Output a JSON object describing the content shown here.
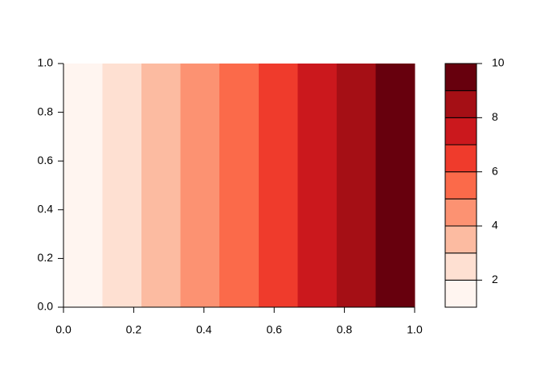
{
  "chart_data": {
    "type": "filled_contour",
    "x_breaks": [
      0,
      0.111,
      0.222,
      0.333,
      0.444,
      0.556,
      0.667,
      0.778,
      0.889,
      1
    ],
    "levels": [
      1,
      2,
      3,
      4,
      5,
      6,
      7,
      8,
      9,
      10
    ],
    "colors": [
      "#FFF5F0",
      "#FEE0D2",
      "#FCBBA1",
      "#FC9272",
      "#FB6A4A",
      "#EF3B2C",
      "#CB181D",
      "#A50F15",
      "#67000D"
    ],
    "xlim": [
      0,
      1
    ],
    "ylim": [
      0,
      1
    ],
    "xticks": [
      {
        "value": 0,
        "label": "0.0"
      },
      0.2,
      0.4,
      0.6,
      0.8,
      {
        "value": 1,
        "label": "1.0"
      }
    ],
    "yticks": [
      {
        "value": 0,
        "label": "0.0"
      },
      0.2,
      0.4,
      0.6,
      0.8,
      {
        "value": 1,
        "label": "1.0"
      }
    ],
    "legend_lim": [
      1,
      10
    ],
    "legend_ticks": [
      2,
      4,
      6,
      8,
      10
    ]
  }
}
